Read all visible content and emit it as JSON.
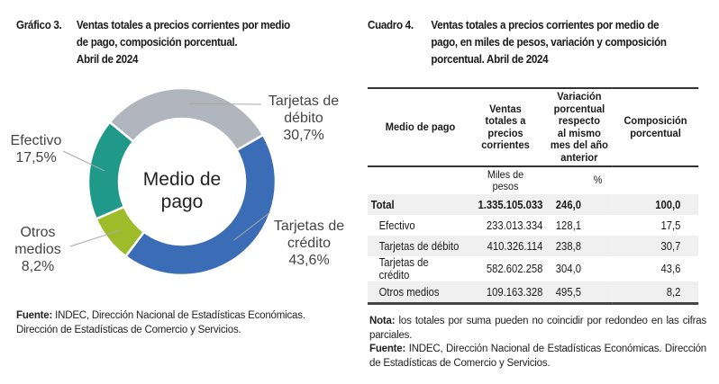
{
  "chart_section": {
    "label": "Gráfico 3.",
    "title_lines": [
      "Ventas totales a precios corrientes por medio",
      "de pago, composición porcentual.",
      "Abril de 2024"
    ],
    "source_label": "Fuente:",
    "source_text": " INDEC, Dirección Nacional de Estadísticas Económicas.",
    "source_text2": "Dirección de Estadísticas de Comercio y Servicios."
  },
  "chart_data": {
    "type": "pie",
    "variant": "donut",
    "title": "Ventas totales a precios corrientes por medio de pago, composición porcentual. Abril de 2024",
    "center_label_lines": [
      "Medio de",
      "pago"
    ],
    "unit": "%",
    "slices": [
      {
        "name": "Tarjetas de débito",
        "label_lines": [
          "Tarjetas de",
          "débito",
          "30,7%"
        ],
        "value": 30.7,
        "color": "#b1b5bd"
      },
      {
        "name": "Tarjetas de crédito",
        "label_lines": [
          "Tarjetas de",
          "crédito",
          "43,6%"
        ],
        "value": 43.6,
        "color": "#3a6db5"
      },
      {
        "name": "Otros medios",
        "label_lines": [
          "Otros",
          "medios",
          "8,2%"
        ],
        "value": 8.2,
        "color": "#9ebc2a"
      },
      {
        "name": "Efectivo",
        "label_lines": [
          "Efectivo",
          "17,5%"
        ],
        "value": 17.5,
        "color": "#1f9a8a"
      }
    ]
  },
  "table_section": {
    "label": "Cuadro 4.",
    "title_lines": [
      "Ventas totales a precios corrientes por medio de",
      "pago, en miles de pesos, variación y composición",
      "porcentual. Abril de 2024"
    ],
    "headers": {
      "col1": "Medio de pago",
      "col2": [
        "Ventas",
        "totales a",
        "precios",
        "corrientes"
      ],
      "col3": [
        "Variación",
        "porcentual",
        "respecto",
        "al mismo",
        "mes del año",
        "anterior"
      ],
      "col4": [
        "Composición",
        "porcentual"
      ]
    },
    "units": {
      "col2": [
        "Miles de",
        "pesos"
      ],
      "col34": "%"
    },
    "rows": [
      {
        "medio": "Total",
        "ventas": "1.335.105.033",
        "variacion": "246,0",
        "composicion": "100,0"
      },
      {
        "medio": "Efectivo",
        "ventas": "233.013.334",
        "variacion": "128,1",
        "composicion": "17,5"
      },
      {
        "medio": "Tarjetas de débito",
        "ventas": "410.326.114",
        "variacion": "238,8",
        "composicion": "30,7"
      },
      {
        "medio": "Tarjetas de crédito",
        "ventas": "582.602.258",
        "variacion": "304,0",
        "composicion": "43,6"
      },
      {
        "medio": "Otros medios",
        "ventas": "109.163.328",
        "variacion": "495,5",
        "composicion": "8,2"
      }
    ],
    "note_label": "Nota:",
    "note_text": " los totales por suma pueden no coincidir por redondeo en las cifras parciales.",
    "source_label": "Fuente:",
    "source_text": " INDEC, Dirección Nacional de Estadísticas Económicas. Dirección de Estadísticas de Comercio y Servicios."
  }
}
